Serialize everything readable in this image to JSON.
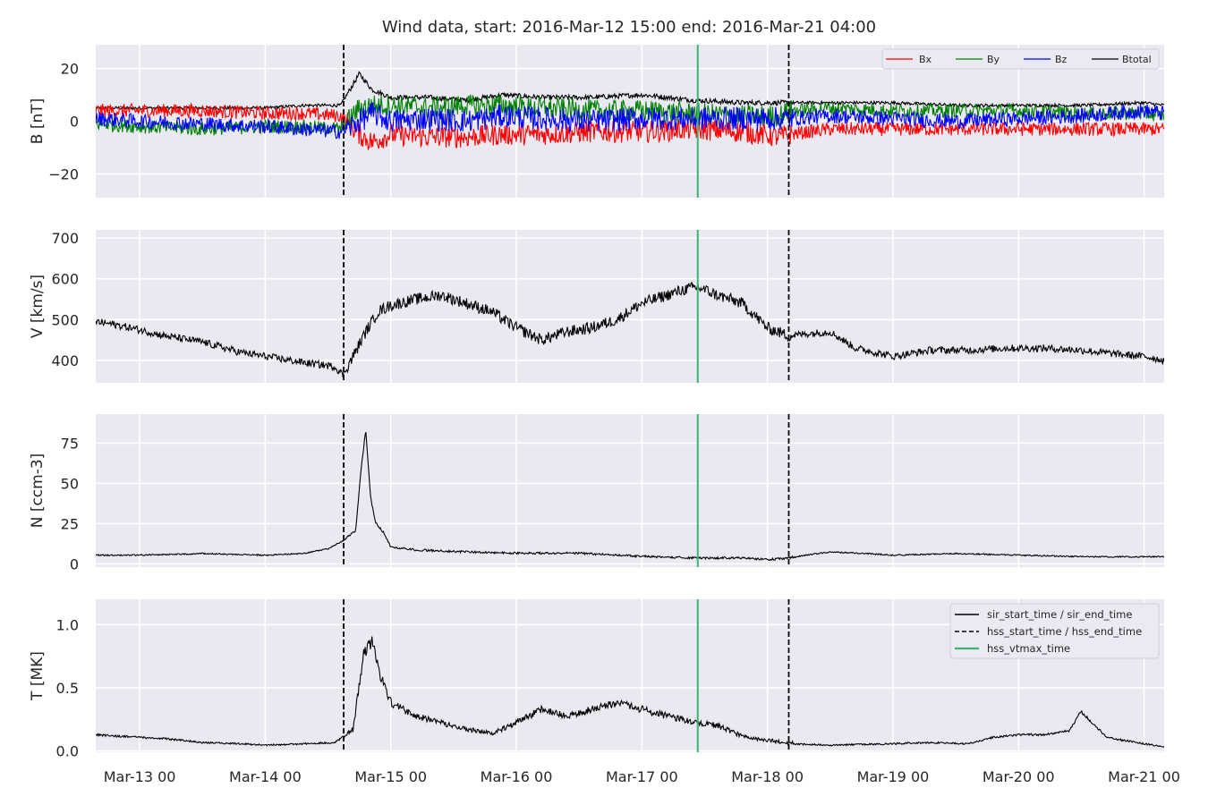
{
  "title": "Wind data, start: 2016-Mar-12 15:00  end: 2016-Mar-21 04:00",
  "x_ticks": [
    "Mar-13 00",
    "Mar-14 00",
    "Mar-15 00",
    "Mar-16 00",
    "Mar-17 00",
    "Mar-18 00",
    "Mar-19 00",
    "Mar-20 00",
    "Mar-21 00"
  ],
  "x_tick_values_days": [
    1,
    2,
    3,
    4,
    5,
    6,
    7,
    8,
    9
  ],
  "x_range_days": [
    0.65,
    9.16
  ],
  "markers": {
    "hss_start_day": 2.625,
    "hss_end_day": 6.17,
    "vtmax_day": 5.445
  },
  "colors": {
    "panel_bg": "#e9e9f2",
    "grid": "#ffffff",
    "bx": "#ff0000",
    "by": "#008000",
    "bz": "#0000ff",
    "btotal": "#000000",
    "trace": "#000000",
    "vtmax": "#3cb371",
    "marker": "#000000"
  },
  "legend_b": {
    "bx": "Bx",
    "by": "By",
    "bz": "Bz",
    "btotal": "Btotal"
  },
  "legend_t": {
    "sir": "sir_start_time / sir_end_time",
    "hss": "hss_start_time / hss_end_time",
    "vtmax": "hss_vtmax_time"
  },
  "chart_data": [
    {
      "type": "line",
      "title": "Wind data, start: 2016-Mar-12 15:00  end: 2016-Mar-21 04:00",
      "ylabel": "B [nT]",
      "ylim": [
        -29,
        29
      ],
      "yticks": [
        -20,
        0,
        20
      ],
      "ytick_labels": [
        "−20",
        "0",
        "20"
      ],
      "x_unit": "days since 2016-Mar-12 00:00",
      "grid": true,
      "legend": "top-right",
      "series": [
        {
          "name": "Btotal",
          "key": "btotal",
          "x": [
            0.65,
            1.0,
            1.5,
            2.0,
            2.3,
            2.6,
            2.75,
            2.85,
            3.0,
            3.3,
            3.6,
            3.9,
            4.2,
            4.6,
            5.0,
            5.4,
            5.8,
            6.1,
            6.17,
            6.5,
            7.0,
            7.5,
            8.0,
            8.5,
            9.0,
            9.16
          ],
          "values": [
            5,
            5,
            5,
            5,
            6,
            6,
            18,
            12,
            9,
            9,
            8,
            10,
            9,
            9,
            10,
            8,
            7,
            7,
            7,
            7,
            7,
            6,
            6,
            6,
            7,
            6
          ]
        },
        {
          "name": "Bx",
          "key": "bx",
          "x": [
            0.65,
            1.0,
            1.5,
            2.0,
            2.3,
            2.6,
            2.75,
            2.85,
            3.0,
            3.3,
            3.6,
            3.9,
            4.2,
            4.6,
            5.0,
            5.4,
            5.8,
            6.1,
            6.17,
            6.5,
            7.0,
            7.5,
            8.0,
            8.5,
            9.0,
            9.16
          ],
          "values": [
            4,
            4,
            4,
            3,
            3,
            2,
            -5,
            -8,
            -5,
            -6,
            -6,
            -5,
            -5,
            -4,
            -4,
            -3,
            -4,
            -6,
            -5,
            -3,
            -3,
            -3,
            -3,
            -3,
            -3,
            -3
          ]
        },
        {
          "name": "By",
          "key": "by",
          "x": [
            0.65,
            1.0,
            1.5,
            2.0,
            2.3,
            2.6,
            2.75,
            2.85,
            3.0,
            3.3,
            3.6,
            3.9,
            4.2,
            4.6,
            5.0,
            5.4,
            5.8,
            6.1,
            6.17,
            6.5,
            7.0,
            7.5,
            8.0,
            8.5,
            9.0,
            9.16
          ],
          "values": [
            -1,
            -2,
            -3,
            -2,
            -2,
            -3,
            5,
            6,
            6,
            5,
            6,
            6,
            5,
            4,
            4,
            3,
            2,
            2,
            4,
            5,
            4,
            4,
            4,
            3,
            3,
            2
          ]
        },
        {
          "name": "Bz",
          "key": "bz",
          "x": [
            0.65,
            1.0,
            1.5,
            2.0,
            2.3,
            2.6,
            2.75,
            2.85,
            3.0,
            3.3,
            3.6,
            3.9,
            4.2,
            4.6,
            5.0,
            5.4,
            5.8,
            6.1,
            6.17,
            6.5,
            7.0,
            7.5,
            8.0,
            8.5,
            9.0,
            9.16
          ],
          "values": [
            1,
            0,
            -1,
            -2,
            -3,
            -4,
            0,
            3,
            0,
            1,
            0,
            2,
            1,
            0,
            1,
            1,
            1,
            1,
            1,
            2,
            1,
            0,
            1,
            2,
            4,
            3
          ]
        }
      ]
    },
    {
      "type": "line",
      "ylabel": "V [km/s]",
      "ylim": [
        345,
        720
      ],
      "yticks": [
        400,
        500,
        600,
        700
      ],
      "ytick_labels": [
        "400",
        "500",
        "600",
        "700"
      ],
      "x_unit": "days since 2016-Mar-12 00:00",
      "grid": true,
      "series": [
        {
          "key": "trace",
          "x": [
            0.65,
            0.8,
            1.0,
            1.2,
            1.5,
            1.8,
            2.0,
            2.3,
            2.55,
            2.62,
            2.7,
            2.8,
            2.9,
            3.0,
            3.2,
            3.4,
            3.6,
            3.8,
            3.9,
            4.0,
            4.2,
            4.4,
            4.6,
            4.8,
            5.0,
            5.2,
            5.35,
            5.445,
            5.6,
            5.8,
            6.0,
            6.17,
            6.3,
            6.5,
            6.7,
            7.0,
            7.3,
            7.6,
            7.9,
            8.2,
            8.5,
            8.8,
            9.0,
            9.16
          ],
          "values": [
            495,
            488,
            475,
            460,
            445,
            420,
            410,
            395,
            385,
            365,
            410,
            470,
            520,
            535,
            550,
            560,
            540,
            520,
            500,
            480,
            450,
            470,
            480,
            500,
            540,
            560,
            575,
            580,
            560,
            540,
            480,
            460,
            465,
            470,
            430,
            410,
            425,
            425,
            430,
            430,
            425,
            415,
            410,
            400
          ]
        }
      ]
    },
    {
      "type": "line",
      "ylabel": "N [ccm-3]",
      "ylim": [
        -2,
        93
      ],
      "yticks": [
        0,
        25,
        50,
        75
      ],
      "ytick_labels": [
        "0",
        "25",
        "50",
        "75"
      ],
      "x_unit": "days since 2016-Mar-12 00:00",
      "grid": true,
      "series": [
        {
          "key": "trace",
          "x": [
            0.65,
            1.0,
            1.5,
            2.0,
            2.3,
            2.5,
            2.62,
            2.72,
            2.76,
            2.8,
            2.84,
            2.88,
            2.95,
            3.0,
            3.2,
            3.5,
            4.0,
            4.5,
            5.0,
            5.445,
            5.8,
            6.0,
            6.17,
            6.3,
            6.5,
            6.8,
            7.0,
            7.5,
            8.0,
            8.5,
            9.0,
            9.16
          ],
          "values": [
            5,
            5,
            6,
            5,
            6,
            9,
            14,
            20,
            55,
            83,
            40,
            25,
            18,
            10,
            8,
            7,
            6,
            6,
            4,
            3,
            3,
            2,
            3,
            5,
            7,
            6,
            5,
            6,
            5,
            4,
            4,
            4
          ]
        }
      ]
    },
    {
      "type": "line",
      "ylabel": "T [MK]",
      "ylim": [
        -0.01,
        1.2
      ],
      "yticks": [
        0.0,
        0.5,
        1.0
      ],
      "ytick_labels": [
        "0.0",
        "0.5",
        "1.0"
      ],
      "x_unit": "days since 2016-Mar-12 00:00",
      "grid": true,
      "legend": "top-right",
      "series": [
        {
          "key": "trace",
          "x": [
            0.65,
            0.8,
            1.0,
            1.2,
            1.5,
            1.8,
            2.0,
            2.3,
            2.55,
            2.7,
            2.78,
            2.85,
            2.9,
            3.0,
            3.2,
            3.4,
            3.6,
            3.8,
            4.0,
            4.2,
            4.4,
            4.6,
            4.8,
            5.0,
            5.2,
            5.445,
            5.6,
            5.8,
            6.0,
            6.17,
            6.5,
            7.0,
            7.3,
            7.6,
            7.8,
            8.0,
            8.2,
            8.4,
            8.5,
            8.7,
            9.0,
            9.16
          ],
          "values": [
            0.12,
            0.11,
            0.1,
            0.09,
            0.06,
            0.05,
            0.04,
            0.05,
            0.06,
            0.15,
            0.7,
            0.8,
            0.6,
            0.35,
            0.25,
            0.2,
            0.15,
            0.12,
            0.2,
            0.3,
            0.25,
            0.3,
            0.35,
            0.3,
            0.25,
            0.2,
            0.18,
            0.1,
            0.07,
            0.05,
            0.04,
            0.05,
            0.06,
            0.05,
            0.1,
            0.12,
            0.12,
            0.15,
            0.3,
            0.1,
            0.05,
            0.03
          ]
        }
      ]
    }
  ]
}
